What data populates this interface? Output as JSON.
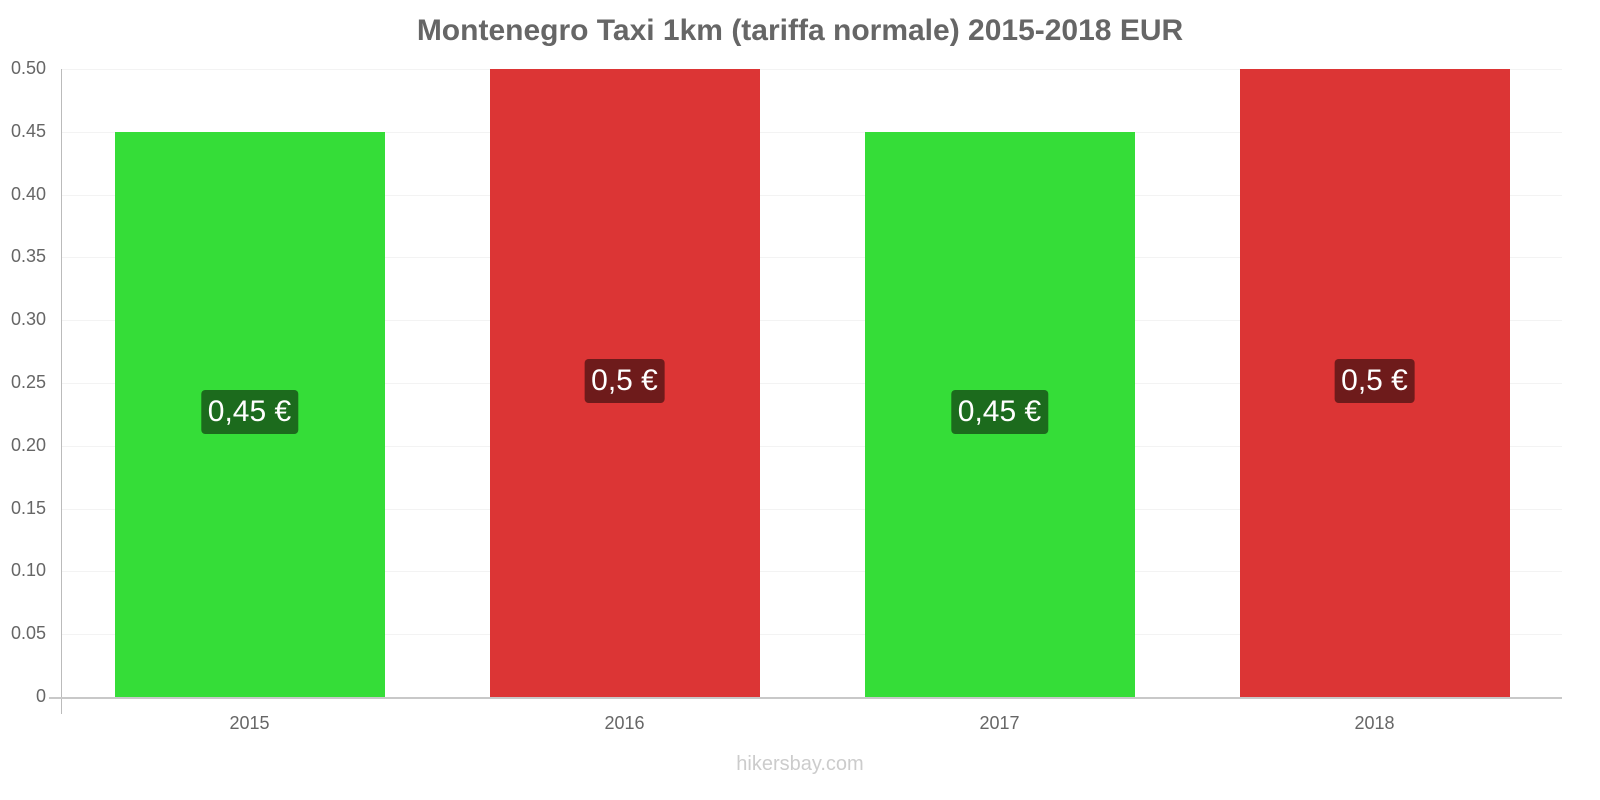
{
  "chart_data": {
    "type": "bar",
    "title": "Montenegro Taxi 1km (tariffa normale) 2015-2018 EUR",
    "categories": [
      "2015",
      "2016",
      "2017",
      "2018"
    ],
    "values": [
      0.45,
      0.5,
      0.45,
      0.5
    ],
    "value_labels": [
      "0,45 €",
      "0,5 €",
      "0,45 €",
      "0,5 €"
    ],
    "bar_colors": [
      "#35dd38",
      "#dc3535",
      "#35dd38",
      "#dc3535"
    ],
    "label_colors": [
      "#1c6b1d",
      "#6e1b1b",
      "#1c6b1d",
      "#6e1b1b"
    ],
    "xlabel": "",
    "ylabel": "",
    "ylim": [
      0,
      0.5
    ],
    "yticks": [
      "0",
      "0.05",
      "0.10",
      "0.15",
      "0.20",
      "0.25",
      "0.30",
      "0.35",
      "0.40",
      "0.45",
      "0.50"
    ],
    "grid": true,
    "legend": null
  },
  "footer": "hikersbay.com"
}
